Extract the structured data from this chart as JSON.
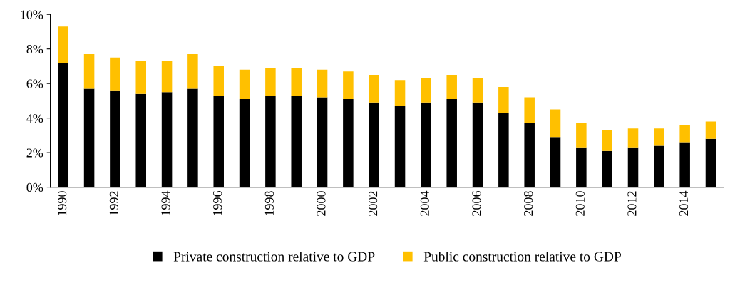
{
  "chart_data": {
    "type": "bar",
    "stacked": true,
    "categories": [
      "1990",
      null,
      "1992",
      null,
      "1994",
      null,
      "1996",
      null,
      "1998",
      null,
      "2000",
      null,
      "2002",
      null,
      "2004",
      null,
      "2006",
      null,
      "2008",
      null,
      "2010",
      null,
      "2012",
      null,
      "2014",
      null
    ],
    "series": [
      {
        "name": "Private construction relative to GDP",
        "color": "#000000",
        "values": [
          7.2,
          5.7,
          5.6,
          5.4,
          5.5,
          5.7,
          5.3,
          5.1,
          5.3,
          5.3,
          5.2,
          5.1,
          4.9,
          4.7,
          4.9,
          5.1,
          4.9,
          4.3,
          3.7,
          2.9,
          2.3,
          2.1,
          2.3,
          2.4,
          2.6,
          2.8
        ]
      },
      {
        "name": "Public construction relative to GDP",
        "color": "#ffc000",
        "values": [
          2.1,
          2.0,
          1.9,
          1.9,
          1.8,
          2.0,
          1.7,
          1.7,
          1.6,
          1.6,
          1.6,
          1.6,
          1.6,
          1.5,
          1.4,
          1.4,
          1.4,
          1.5,
          1.5,
          1.6,
          1.4,
          1.2,
          1.1,
          1.0,
          1.0,
          1.0
        ]
      }
    ],
    "ylim": [
      0,
      10
    ],
    "yticks": [
      {
        "value": 0,
        "label": "0%"
      },
      {
        "value": 2,
        "label": "2%"
      },
      {
        "value": 4,
        "label": "4%"
      },
      {
        "value": 6,
        "label": "6%"
      },
      {
        "value": 8,
        "label": "8%"
      },
      {
        "value": 10,
        "label": "10%"
      }
    ],
    "grid": false,
    "legend": "bottom"
  }
}
